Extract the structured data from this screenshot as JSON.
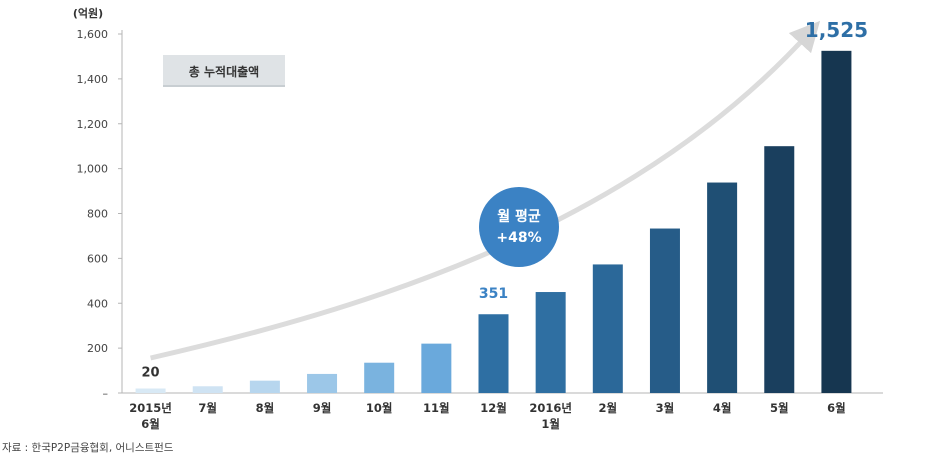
{
  "chart_data": {
    "type": "bar",
    "unit_label": "(억원)",
    "legend_box": "총 누적대출액",
    "categories": [
      "2015년\n6월",
      "7월",
      "8월",
      "9월",
      "10월",
      "11월",
      "12월",
      "2016년\n1월",
      "2월",
      "3월",
      "4월",
      "5월",
      "6월"
    ],
    "values": [
      20,
      30,
      55,
      85,
      135,
      220,
      351,
      450,
      573,
      733,
      938,
      1100,
      1525
    ],
    "ylim": [
      0,
      1600
    ],
    "yticks": [
      0,
      200,
      400,
      600,
      800,
      1000,
      1200,
      1400,
      1600
    ],
    "ytick_labels": [
      "–",
      "200",
      "400",
      "600",
      "800",
      "1,000",
      "1,200",
      "1,400",
      "1,600"
    ],
    "data_labels": [
      {
        "index": 0,
        "text": "20"
      },
      {
        "index": 6,
        "text": "351"
      },
      {
        "index": 12,
        "text": "1,525"
      }
    ],
    "annotation": {
      "line1": "월 평균",
      "line2": "+48%"
    },
    "bar_colors": [
      "#d8e9f5",
      "#cfe3f3",
      "#b7d6ee",
      "#9cc7e8",
      "#7ab3df",
      "#6aa9dc",
      "#2e6fa3",
      "#2f6fa2",
      "#2b6899",
      "#265c88",
      "#1f4f74",
      "#1a3f5e",
      "#163650"
    ],
    "colors": {
      "arrow": "#dcdcdc",
      "circle": "#3b82c4",
      "label_mid": "#3b82c4",
      "label_last": "#2e6fa6",
      "label_first": "#333333",
      "legend_bg": "#dfe3e6"
    },
    "grid": false,
    "legend_placement": "top-left"
  },
  "source": "자료 : 한국P2P금융협회, 어니스트펀드"
}
